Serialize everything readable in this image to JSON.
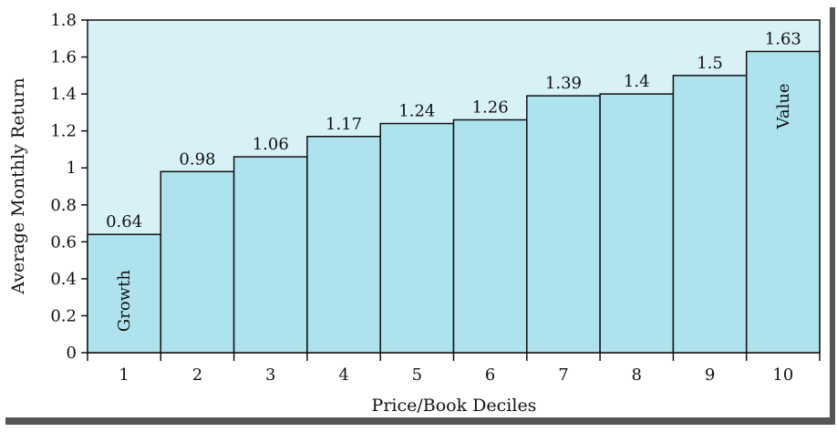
{
  "chart_data": {
    "type": "bar",
    "categories": [
      "1",
      "2",
      "3",
      "4",
      "5",
      "6",
      "7",
      "8",
      "9",
      "10"
    ],
    "values": [
      0.64,
      0.98,
      1.06,
      1.17,
      1.24,
      1.26,
      1.39,
      1.4,
      1.5,
      1.63
    ],
    "data_labels": [
      "0.64",
      "0.98",
      "1.06",
      "1.17",
      "1.24",
      "1.26",
      "1.39",
      "1.4",
      "1.5",
      "1.63"
    ],
    "xlabel": "Price/Book Deciles",
    "ylabel": "Average Monthly Return",
    "ylim": [
      0,
      1.8
    ],
    "yticks": [
      "0",
      "0.2",
      "0.4",
      "0.6",
      "0.8",
      "1",
      "1.2",
      "1.4",
      "1.6",
      "1.8"
    ],
    "annotations": [
      {
        "text": "Growth",
        "category": "1"
      },
      {
        "text": "Value",
        "category": "10"
      }
    ],
    "grid": false,
    "colors": {
      "bar_fill": "#aee3ee",
      "plot_background": "#d7f1f7",
      "bar_edge": "#111111"
    }
  }
}
